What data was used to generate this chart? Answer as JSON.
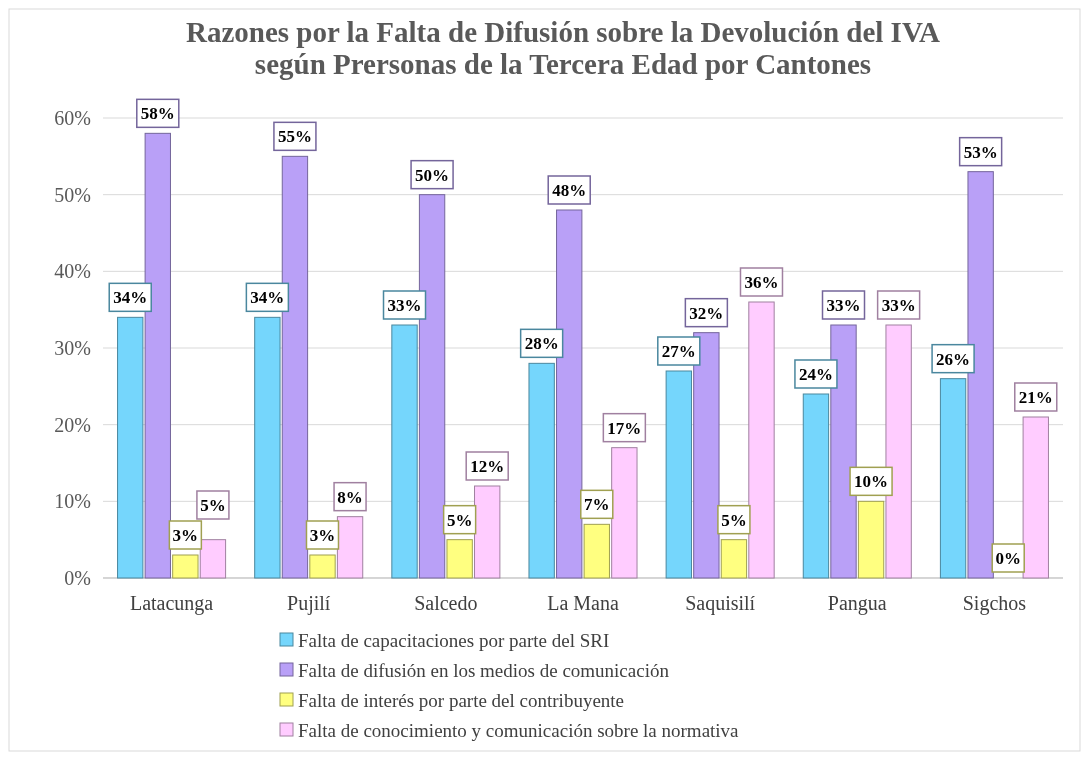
{
  "chart_data": {
    "type": "bar",
    "title": "Razones por la Falta de Difusión sobre la Devolución del IVA\nsegún Prersonas de la Tercera Edad por Cantones",
    "categories": [
      "Latacunga",
      "Pujilí",
      "Salcedo",
      "La Mana",
      "Saquisilí",
      "Pangua",
      "Sigchos"
    ],
    "series": [
      {
        "name": "Falta de capacitaciones por parte del SRI",
        "color": "#75d6fc",
        "values": [
          34,
          34,
          33,
          28,
          27,
          24,
          26
        ],
        "value_labels": [
          "34%",
          "34%",
          "33%",
          "28%",
          "27%",
          "24%",
          "26%"
        ]
      },
      {
        "name": "Falta de difusión en los medios de comunicación",
        "color": "#b9a0f7",
        "values": [
          58,
          55,
          50,
          48,
          32,
          33,
          53
        ],
        "value_labels": [
          "58%",
          "55%",
          "50%",
          "48%",
          "32%",
          "33%",
          "53%"
        ]
      },
      {
        "name": "Falta de interés por parte del contribuyente",
        "color": "#ffff80",
        "values": [
          3,
          3,
          5,
          7,
          5,
          10,
          0
        ],
        "value_labels": [
          "3%",
          "3%",
          "5%",
          "7%",
          "5%",
          "10%",
          "0%"
        ]
      },
      {
        "name": "Falta de conocimiento y comunicación sobre la normativa",
        "color": "#ffccff",
        "values": [
          5,
          8,
          12,
          17,
          36,
          33,
          21
        ],
        "value_labels": [
          "5%",
          "8%",
          "12%",
          "17%",
          "36%",
          "33%",
          "21%"
        ]
      }
    ],
    "ylim": [
      0,
      60
    ],
    "yticks": [
      {
        "value": 0,
        "label": "0%"
      },
      {
        "value": 10,
        "label": "10%"
      },
      {
        "value": 20,
        "label": "20%"
      },
      {
        "value": 30,
        "label": "30%"
      },
      {
        "value": 40,
        "label": "40%"
      },
      {
        "value": 50,
        "label": "50%"
      },
      {
        "value": 60,
        "label": "60%"
      }
    ],
    "grid": true,
    "legend": "bottom"
  }
}
